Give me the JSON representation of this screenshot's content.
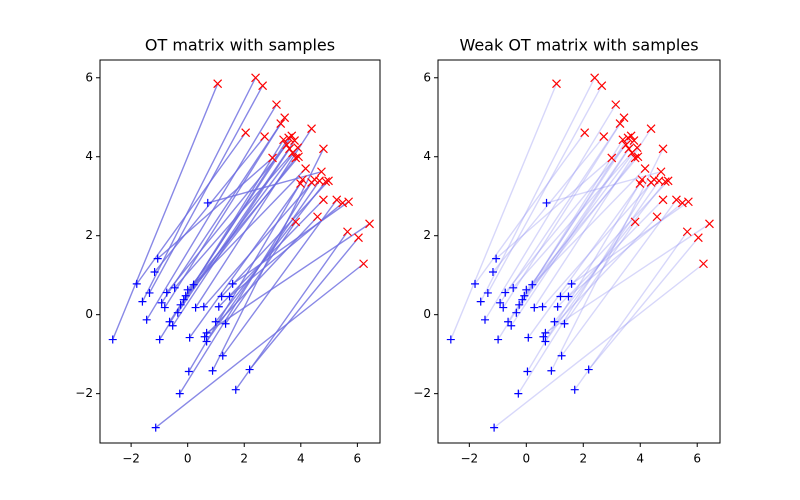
{
  "chart_data": [
    {
      "type": "scatter",
      "title": "OT matrix with samples",
      "xlim": [
        -3.1,
        6.8
      ],
      "ylim": [
        -3.25,
        6.45
      ],
      "xticks": [
        {
          "value": -2,
          "label": "−2"
        },
        0,
        2,
        4,
        6
      ],
      "yticks": [
        {
          "value": -2,
          "label": "−2"
        },
        0,
        2,
        4,
        6
      ],
      "line_color": "#6a6ae0",
      "line_opacity": 0.8,
      "sources": {
        "color": "#0000ff",
        "marker": "+",
        "x": [
          -2.65,
          -1.8,
          -1.6,
          -1.35,
          -1.17,
          -1.06,
          -1.45,
          -0.92,
          -0.81,
          -0.99,
          -0.74,
          -0.64,
          -0.53,
          -0.46,
          -0.35,
          -0.25,
          -0.14,
          -0.07,
          0,
          0.07,
          0.04,
          0.21,
          0.28,
          -0.28,
          0.57,
          0.6,
          0.67,
          0.71,
          0.88,
          0.99,
          1.1,
          1.2,
          1.34,
          1.24,
          1.48,
          1.59,
          1.7,
          2.19,
          -1.13,
          0.67
        ],
        "y": [
          -0.63,
          0.78,
          0.33,
          0.55,
          1.08,
          1.42,
          -0.13,
          0.3,
          0.18,
          -0.63,
          0.56,
          -0.18,
          -0.28,
          0.68,
          0.05,
          0.25,
          0.38,
          0.48,
          0.63,
          -0.58,
          -1.44,
          0.76,
          0.18,
          -2.0,
          0.2,
          -0.56,
          -0.68,
          2.83,
          -1.42,
          -0.18,
          0.2,
          0.46,
          -0.23,
          -1.04,
          0.46,
          0.78,
          -1.9,
          -1.39,
          -2.86,
          -0.46
        ]
      },
      "targets": {
        "color": "#ff0000",
        "marker": "x",
        "x": [
          1.06,
          2.05,
          2.4,
          2.65,
          2.72,
          3.0,
          3.14,
          3.29,
          3.43,
          3.39,
          3.5,
          3.57,
          3.6,
          3.71,
          3.78,
          3.82,
          3.89,
          3.68,
          3.92,
          3.99,
          4.06,
          4.17,
          4.38,
          4.38,
          4.49,
          4.59,
          4.66,
          4.73,
          4.8,
          4.88,
          4.8,
          4.98,
          3.82,
          5.27,
          5.48,
          5.69,
          5.65,
          6.04,
          6.22,
          6.43
        ],
        "y": [
          5.85,
          4.61,
          6.0,
          5.8,
          4.51,
          3.97,
          5.32,
          4.84,
          4.99,
          4.43,
          4.3,
          4.48,
          4.2,
          4.1,
          4.41,
          3.97,
          4.23,
          4.53,
          4.0,
          3.32,
          3.42,
          3.7,
          4.71,
          3.35,
          3.42,
          2.48,
          3.39,
          3.62,
          4.2,
          3.37,
          2.91,
          3.39,
          2.35,
          2.91,
          2.83,
          2.86,
          2.1,
          1.95,
          1.29,
          2.3
        ]
      }
    },
    {
      "type": "scatter",
      "title": "Weak OT matrix with samples",
      "xlim": [
        -3.1,
        6.8
      ],
      "ylim": [
        -3.25,
        6.45
      ],
      "xticks": [
        {
          "value": -2,
          "label": "−2"
        },
        0,
        2,
        4,
        6
      ],
      "yticks": [
        {
          "value": -2,
          "label": "−2"
        },
        0,
        2,
        4,
        6
      ],
      "line_color": "#8c8cf0",
      "line_opacity": 0.35,
      "sources": {
        "color": "#0000ff",
        "marker": "+",
        "x": [
          -2.65,
          -1.8,
          -1.6,
          -1.35,
          -1.17,
          -1.06,
          -1.45,
          -0.92,
          -0.81,
          -0.99,
          -0.74,
          -0.64,
          -0.53,
          -0.46,
          -0.35,
          -0.25,
          -0.14,
          -0.07,
          0,
          0.07,
          0.04,
          0.21,
          0.28,
          -0.28,
          0.57,
          0.6,
          0.67,
          0.71,
          0.88,
          0.99,
          1.1,
          1.2,
          1.34,
          1.24,
          1.48,
          1.59,
          1.7,
          2.19,
          -1.13,
          0.67
        ],
        "y": [
          -0.63,
          0.78,
          0.33,
          0.55,
          1.08,
          1.42,
          -0.13,
          0.3,
          0.18,
          -0.63,
          0.56,
          -0.18,
          -0.28,
          0.68,
          0.05,
          0.25,
          0.38,
          0.48,
          0.63,
          -0.58,
          -1.44,
          0.76,
          0.18,
          -2.0,
          0.2,
          -0.56,
          -0.68,
          2.83,
          -1.42,
          -0.18,
          0.2,
          0.46,
          -0.23,
          -1.04,
          0.46,
          0.78,
          -1.9,
          -1.39,
          -2.86,
          -0.46
        ]
      },
      "targets": {
        "color": "#ff0000",
        "marker": "x",
        "x": [
          1.06,
          2.05,
          2.4,
          2.65,
          2.72,
          3.0,
          3.14,
          3.29,
          3.43,
          3.39,
          3.5,
          3.57,
          3.6,
          3.71,
          3.78,
          3.82,
          3.89,
          3.68,
          3.92,
          3.99,
          4.06,
          4.17,
          4.38,
          4.38,
          4.49,
          4.59,
          4.66,
          4.73,
          4.8,
          4.88,
          4.8,
          4.98,
          3.82,
          5.27,
          5.48,
          5.69,
          5.65,
          6.04,
          6.22,
          6.43
        ],
        "y": [
          5.85,
          4.61,
          6.0,
          5.8,
          4.51,
          3.97,
          5.32,
          4.84,
          4.99,
          4.43,
          4.3,
          4.48,
          4.2,
          4.1,
          4.41,
          3.97,
          4.23,
          4.53,
          4.0,
          3.32,
          3.42,
          3.7,
          4.71,
          3.35,
          3.42,
          2.48,
          3.39,
          3.62,
          4.2,
          3.37,
          2.91,
          3.39,
          2.35,
          2.91,
          2.83,
          2.86,
          2.1,
          1.95,
          1.29,
          2.3
        ]
      }
    }
  ]
}
